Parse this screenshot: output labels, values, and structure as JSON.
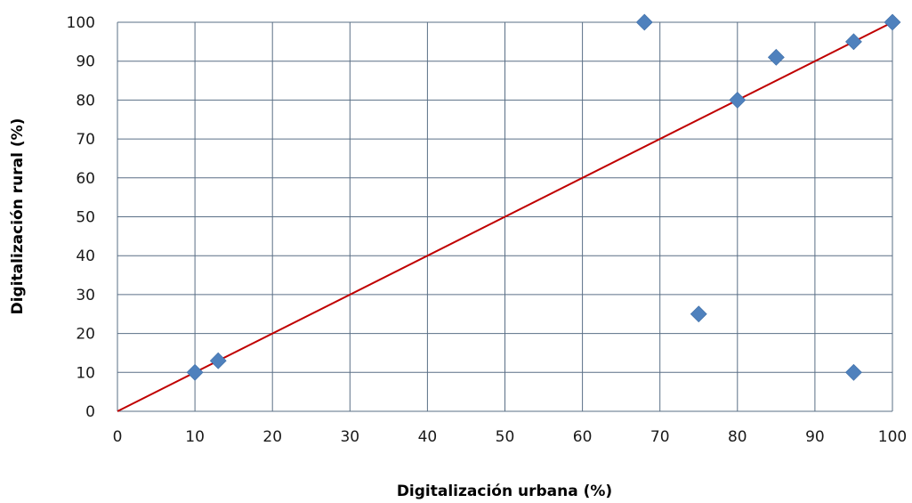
{
  "chart_data": {
    "type": "scatter",
    "title": "",
    "xlabel": "Digitalización urbana (%)",
    "ylabel": "Digitalización rural (%)",
    "xlim": [
      0,
      100
    ],
    "ylim": [
      0,
      100
    ],
    "xticks": [
      0,
      10,
      20,
      30,
      40,
      50,
      60,
      70,
      80,
      90,
      100
    ],
    "yticks": [
      0,
      10,
      20,
      30,
      40,
      50,
      60,
      70,
      80,
      90,
      100
    ],
    "grid": true,
    "legend": "none",
    "series": [
      {
        "marker": "diamond",
        "color": "#4f81bd",
        "points": [
          {
            "x": 10,
            "y": 10
          },
          {
            "x": 13,
            "y": 13
          },
          {
            "x": 68,
            "y": 100
          },
          {
            "x": 75,
            "y": 25
          },
          {
            "x": 80,
            "y": 80
          },
          {
            "x": 85,
            "y": 91
          },
          {
            "x": 95,
            "y": 95
          },
          {
            "x": 95,
            "y": 10
          },
          {
            "x": 100,
            "y": 100
          }
        ]
      }
    ],
    "reference_line": {
      "from": [
        0,
        0
      ],
      "to": [
        100,
        100
      ],
      "color": "#c00000"
    },
    "grid_color": "#5a6f86"
  }
}
